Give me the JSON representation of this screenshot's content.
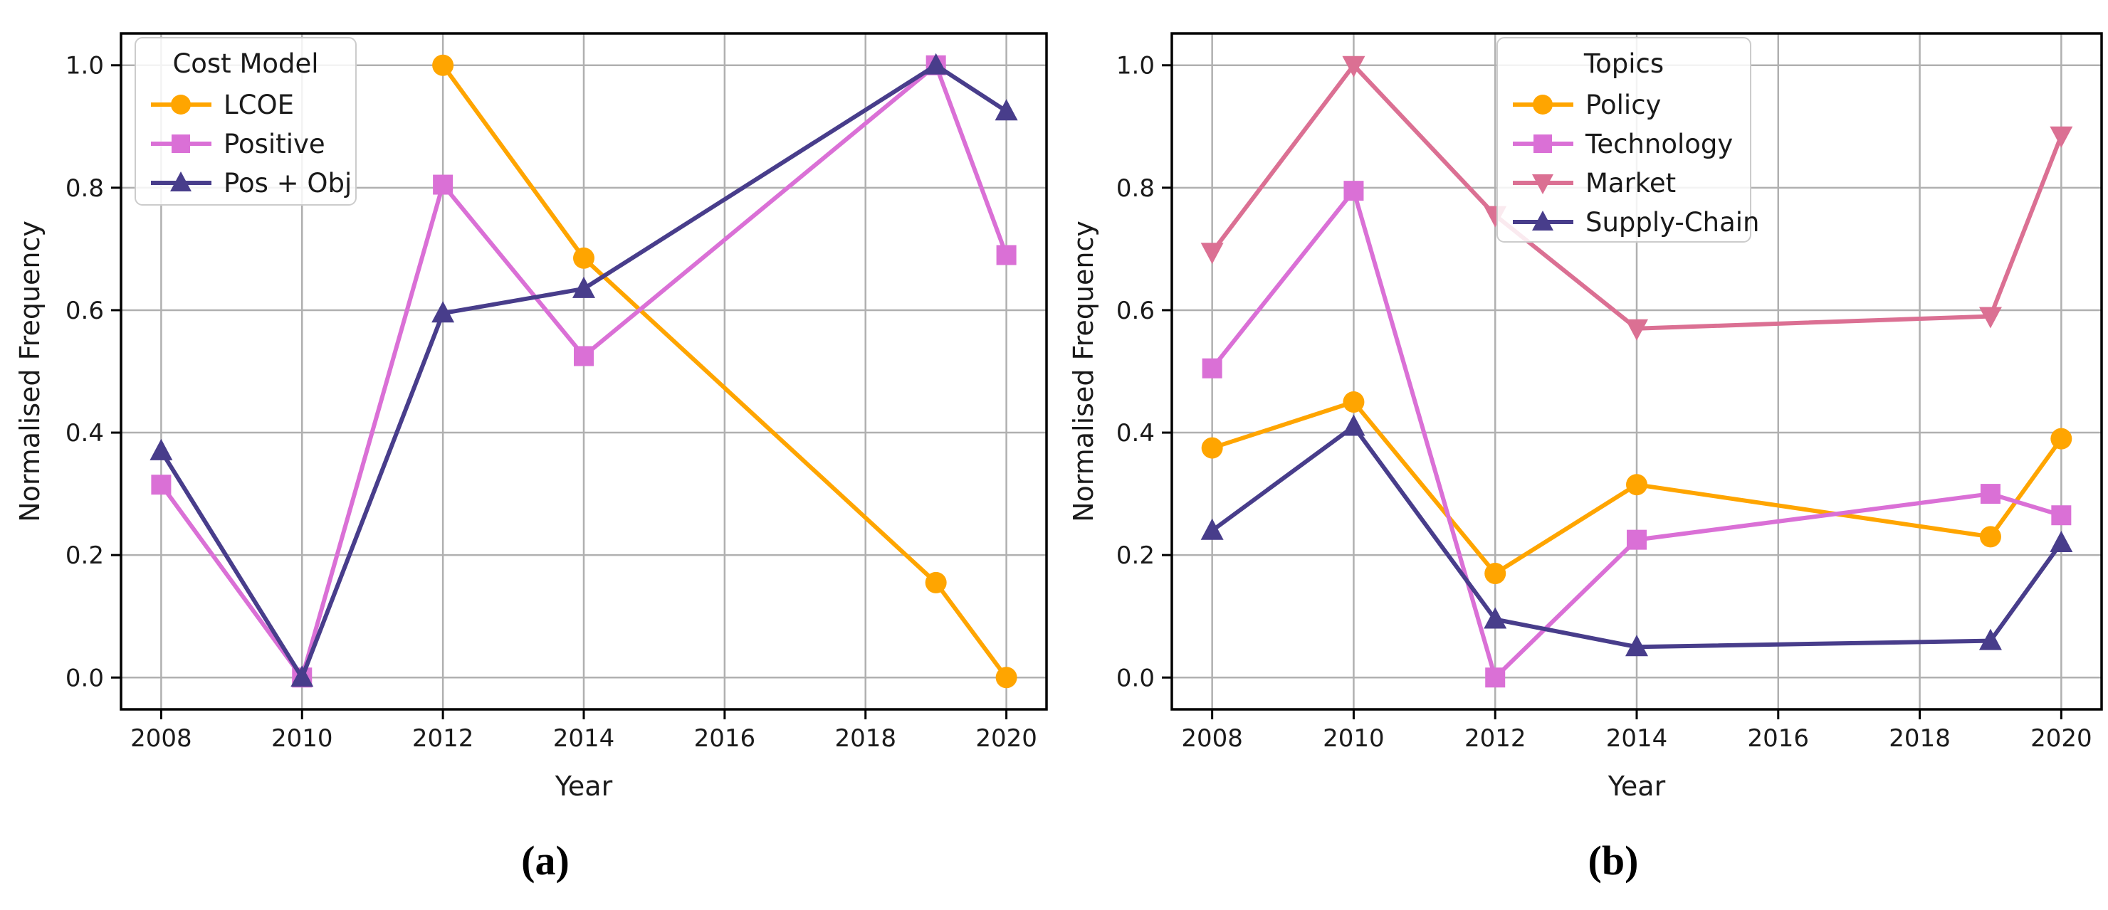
{
  "figure": {
    "background": "#ffffff",
    "captions": {
      "a": "(a)",
      "b": "(b)"
    }
  },
  "axes_style": {
    "grid_color": "#b0b0b0",
    "spine_color": "#000000",
    "text_color": "#1a1a1a",
    "legend_border_color": "#cccccc",
    "legend_background": "rgba(255,255,255,0.85)"
  },
  "chart_data": [
    {
      "id": "a",
      "type": "line",
      "caption": "(a)",
      "xlabel": "Year",
      "ylabel": "Normalised Frequency",
      "x_ticks": [
        2008,
        2010,
        2012,
        2014,
        2016,
        2018,
        2020
      ],
      "y_ticks": [
        0.0,
        0.2,
        0.4,
        0.6,
        0.8,
        1.0
      ],
      "y_tick_labels": [
        "0.0",
        "0.2",
        "0.4",
        "0.6",
        "0.8",
        "1.0"
      ],
      "xlim": [
        2007.43,
        2020.57
      ],
      "ylim": [
        -0.052,
        1.052
      ],
      "grid": true,
      "legend_title": "Cost Model",
      "legend_position": "upper left",
      "series": [
        {
          "name": "LCOE",
          "color": "#FFA500",
          "marker": "circle",
          "points": [
            [
              2012,
              1.0
            ],
            [
              2014,
              0.685
            ],
            [
              2019,
              0.155
            ],
            [
              2020,
              0.0
            ]
          ]
        },
        {
          "name": "Positive",
          "color": "#DA70D6",
          "marker": "square",
          "points": [
            [
              2008,
              0.315
            ],
            [
              2010,
              0.0
            ],
            [
              2012,
              0.805
            ],
            [
              2014,
              0.525
            ],
            [
              2019,
              1.0
            ],
            [
              2020,
              0.69
            ]
          ]
        },
        {
          "name": "Pos + Obj",
          "color": "#483D8B",
          "marker": "triangle-up",
          "points": [
            [
              2008,
              0.37
            ],
            [
              2010,
              0.0
            ],
            [
              2012,
              0.595
            ],
            [
              2014,
              0.635
            ],
            [
              2019,
              1.0
            ],
            [
              2020,
              0.925
            ]
          ]
        }
      ]
    },
    {
      "id": "b",
      "type": "line",
      "caption": "(b)",
      "xlabel": "Year",
      "ylabel": "Normalised Frequency",
      "x_ticks": [
        2008,
        2010,
        2012,
        2014,
        2016,
        2018,
        2020
      ],
      "y_ticks": [
        0.0,
        0.2,
        0.4,
        0.6,
        0.8,
        1.0
      ],
      "y_tick_labels": [
        "0.0",
        "0.2",
        "0.4",
        "0.6",
        "0.8",
        "1.0"
      ],
      "xlim": [
        2007.43,
        2020.57
      ],
      "ylim": [
        -0.052,
        1.052
      ],
      "grid": true,
      "legend_title": "Topics",
      "legend_position": "upper center",
      "series": [
        {
          "name": "Policy",
          "color": "#FFA500",
          "marker": "circle",
          "points": [
            [
              2008,
              0.375
            ],
            [
              2010,
              0.45
            ],
            [
              2012,
              0.17
            ],
            [
              2014,
              0.315
            ],
            [
              2019,
              0.23
            ],
            [
              2020,
              0.39
            ]
          ]
        },
        {
          "name": "Technology",
          "color": "#DA70D6",
          "marker": "square",
          "points": [
            [
              2008,
              0.505
            ],
            [
              2010,
              0.795
            ],
            [
              2012,
              0.0
            ],
            [
              2014,
              0.225
            ],
            [
              2019,
              0.3
            ],
            [
              2020,
              0.265
            ]
          ]
        },
        {
          "name": "Market",
          "color": "#DB7093",
          "marker": "triangle-down",
          "points": [
            [
              2008,
              0.695
            ],
            [
              2010,
              1.0
            ],
            [
              2012,
              0.755
            ],
            [
              2014,
              0.57
            ],
            [
              2019,
              0.59
            ],
            [
              2020,
              0.885
            ]
          ]
        },
        {
          "name": "Supply-Chain",
          "color": "#483D8B",
          "marker": "triangle-up",
          "points": [
            [
              2008,
              0.24
            ],
            [
              2010,
              0.41
            ],
            [
              2012,
              0.095
            ],
            [
              2014,
              0.05
            ],
            [
              2019,
              0.06
            ],
            [
              2020,
              0.22
            ]
          ]
        }
      ]
    }
  ]
}
